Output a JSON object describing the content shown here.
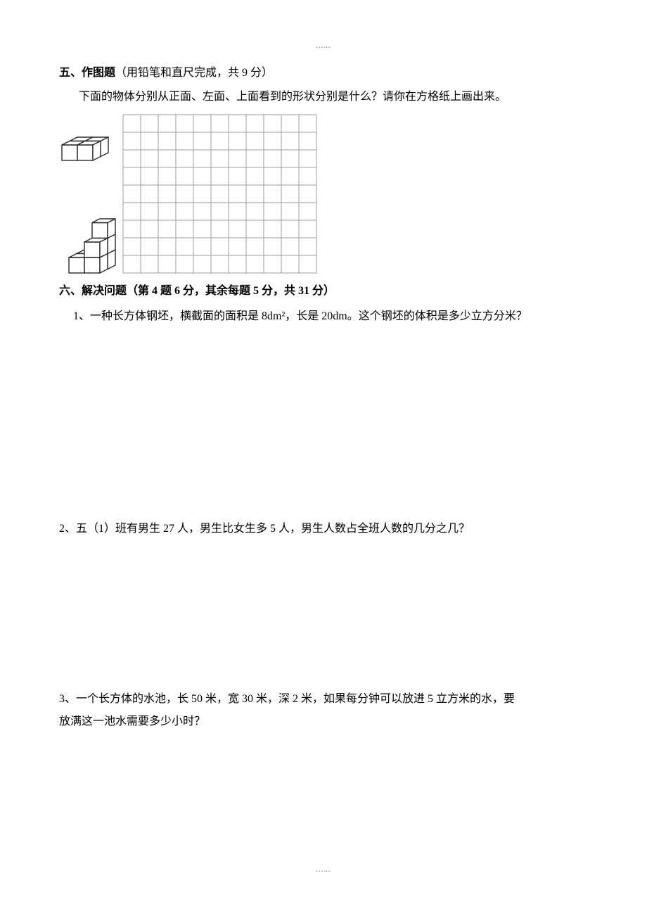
{
  "page": {
    "dots": "......"
  },
  "section5": {
    "label": "五、作图题",
    "note": "（用铅笔和直尺完成，共 9 分）",
    "prompt": "下面的物体分别从正面、左面、上面看到的形状分别是什么？请你在方格纸上画出来。"
  },
  "section6": {
    "label": "六、解决问题",
    "note": "（第 4 题 6 分，其余每题 5 分，共 31 分）"
  },
  "q1": {
    "text": "1、一种长方体钢坯，横截面的面积是 8dm²，长是 20dm。这个钢坯的体积是多少立方分米？"
  },
  "q2": {
    "text": "2、五（1）班有男生 27 人，男生比女生多 5 人，男生人数占全班人数的几分之几？"
  },
  "q3": {
    "line1": "3、一个长方体的水池，长 50 米，宽 30 米，深 2 米，如果每分钟可以放进 5 立方米的水，要",
    "line2": "放满这一池水需要多少小时？"
  },
  "grid": {
    "cols": 11,
    "rows": 9,
    "cell": 25,
    "stroke": "#9e9e9e",
    "fill": "#ffffff"
  },
  "cube_style": {
    "stroke": "#2b2b2b",
    "front_fill": "#ffffff",
    "side_fill": "#ffffff",
    "top_fill": "#ffffff",
    "stroke_width": 1.4,
    "size": 22,
    "depth": 11
  },
  "shape1": {
    "cubes": [
      {
        "gx": 0,
        "gy": 0,
        "gz": 0
      },
      {
        "gx": 1,
        "gy": 0,
        "gz": 0
      },
      {
        "gx": 0,
        "gy": 0,
        "gz": 1
      },
      {
        "gx": 1,
        "gy": 0,
        "gz": 1
      }
    ]
  },
  "shape2": {
    "cubes": [
      {
        "gx": 0,
        "gy": 0,
        "gz": 0
      },
      {
        "gx": 1,
        "gy": 0,
        "gz": 0
      },
      {
        "gx": 0,
        "gy": 0,
        "gz": 1
      },
      {
        "gx": 1,
        "gy": 0,
        "gz": 1
      },
      {
        "gx": 1,
        "gy": 1,
        "gz": 0
      },
      {
        "gx": 1,
        "gy": 1,
        "gz": 1
      },
      {
        "gx": 1,
        "gy": 2,
        "gz": 1
      }
    ]
  }
}
